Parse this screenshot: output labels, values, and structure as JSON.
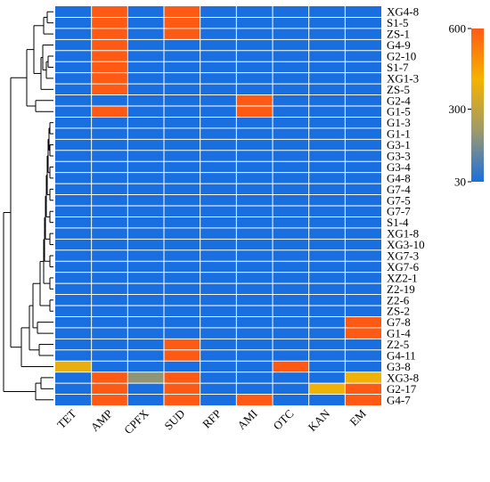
{
  "chart_data": {
    "type": "heatmap",
    "title": "",
    "xlabel": "",
    "ylabel": "",
    "columns": [
      "TET",
      "AMP",
      "CPFX",
      "SUD",
      "RFP",
      "AMI",
      "OTC",
      "KAN",
      "EM"
    ],
    "rows": [
      "XG4-8",
      "S1-5",
      "ZS-1",
      "G4-9",
      "G2-10",
      "S1-7",
      "XG1-3",
      "ZS-5",
      "G2-4",
      "G1-5",
      "G1-3",
      "G1-1",
      "G3-1",
      "G3-3",
      "G3-4",
      "G4-8",
      "G7-4",
      "G7-5",
      "G7-7",
      "S1-4",
      "XG1-8",
      "XG3-10",
      "XG7-3",
      "XG7-6",
      "XZ2-1",
      "Z2-19",
      "Z2-6",
      "ZS-2",
      "G7-8",
      "G1-4",
      "Z2-5",
      "G4-11",
      "G3-8",
      "XG3-8",
      "G2-17",
      "G4-7"
    ],
    "values": [
      [
        30,
        600,
        30,
        600,
        30,
        30,
        30,
        30,
        30
      ],
      [
        30,
        600,
        30,
        600,
        30,
        30,
        30,
        30,
        30
      ],
      [
        30,
        600,
        30,
        600,
        30,
        30,
        30,
        30,
        30
      ],
      [
        30,
        600,
        30,
        30,
        30,
        30,
        30,
        30,
        30
      ],
      [
        30,
        600,
        30,
        30,
        30,
        30,
        30,
        30,
        30
      ],
      [
        30,
        600,
        30,
        30,
        30,
        30,
        30,
        30,
        30
      ],
      [
        30,
        600,
        30,
        30,
        30,
        30,
        30,
        30,
        30
      ],
      [
        30,
        600,
        30,
        30,
        30,
        30,
        30,
        30,
        30
      ],
      [
        30,
        30,
        30,
        30,
        30,
        600,
        30,
        30,
        30
      ],
      [
        30,
        600,
        30,
        30,
        30,
        600,
        30,
        30,
        30
      ],
      [
        30,
        30,
        30,
        30,
        30,
        30,
        30,
        30,
        30
      ],
      [
        30,
        30,
        30,
        30,
        30,
        30,
        30,
        30,
        30
      ],
      [
        30,
        30,
        30,
        30,
        30,
        30,
        30,
        30,
        30
      ],
      [
        30,
        30,
        30,
        30,
        30,
        30,
        30,
        30,
        30
      ],
      [
        30,
        30,
        30,
        30,
        30,
        30,
        30,
        30,
        30
      ],
      [
        30,
        30,
        30,
        30,
        30,
        30,
        30,
        30,
        30
      ],
      [
        30,
        30,
        30,
        30,
        30,
        30,
        30,
        30,
        30
      ],
      [
        30,
        30,
        30,
        30,
        30,
        30,
        30,
        30,
        30
      ],
      [
        30,
        30,
        30,
        30,
        30,
        30,
        30,
        30,
        30
      ],
      [
        30,
        30,
        30,
        30,
        30,
        30,
        30,
        30,
        30
      ],
      [
        30,
        30,
        30,
        30,
        30,
        30,
        30,
        30,
        30
      ],
      [
        30,
        30,
        30,
        30,
        30,
        30,
        30,
        30,
        30
      ],
      [
        30,
        30,
        30,
        30,
        30,
        30,
        30,
        30,
        30
      ],
      [
        30,
        30,
        30,
        30,
        30,
        30,
        30,
        30,
        30
      ],
      [
        30,
        30,
        30,
        30,
        30,
        30,
        30,
        30,
        30
      ],
      [
        30,
        30,
        30,
        30,
        30,
        30,
        30,
        30,
        30
      ],
      [
        30,
        30,
        30,
        30,
        30,
        30,
        30,
        30,
        30
      ],
      [
        30,
        30,
        30,
        30,
        30,
        30,
        30,
        30,
        30
      ],
      [
        30,
        30,
        30,
        30,
        30,
        30,
        30,
        30,
        600
      ],
      [
        30,
        30,
        30,
        30,
        30,
        30,
        30,
        30,
        600
      ],
      [
        30,
        30,
        30,
        600,
        30,
        30,
        30,
        30,
        30
      ],
      [
        30,
        30,
        30,
        600,
        30,
        30,
        30,
        30,
        30
      ],
      [
        380,
        30,
        30,
        30,
        30,
        30,
        600,
        30,
        30
      ],
      [
        30,
        600,
        200,
        600,
        30,
        30,
        30,
        30,
        400
      ],
      [
        30,
        600,
        30,
        600,
        30,
        30,
        30,
        400,
        600
      ],
      [
        30,
        600,
        30,
        600,
        30,
        600,
        30,
        30,
        600
      ]
    ],
    "colorbar": {
      "ticks": [
        30,
        300,
        600
      ],
      "tick_labels": [
        "30",
        "300",
        "600"
      ],
      "range": [
        30,
        600
      ],
      "colors": [
        "#1a6fe0",
        "#9e9a6a",
        "#f5b300",
        "#ff5a14"
      ]
    },
    "dendrogram": "left",
    "grid": true
  }
}
